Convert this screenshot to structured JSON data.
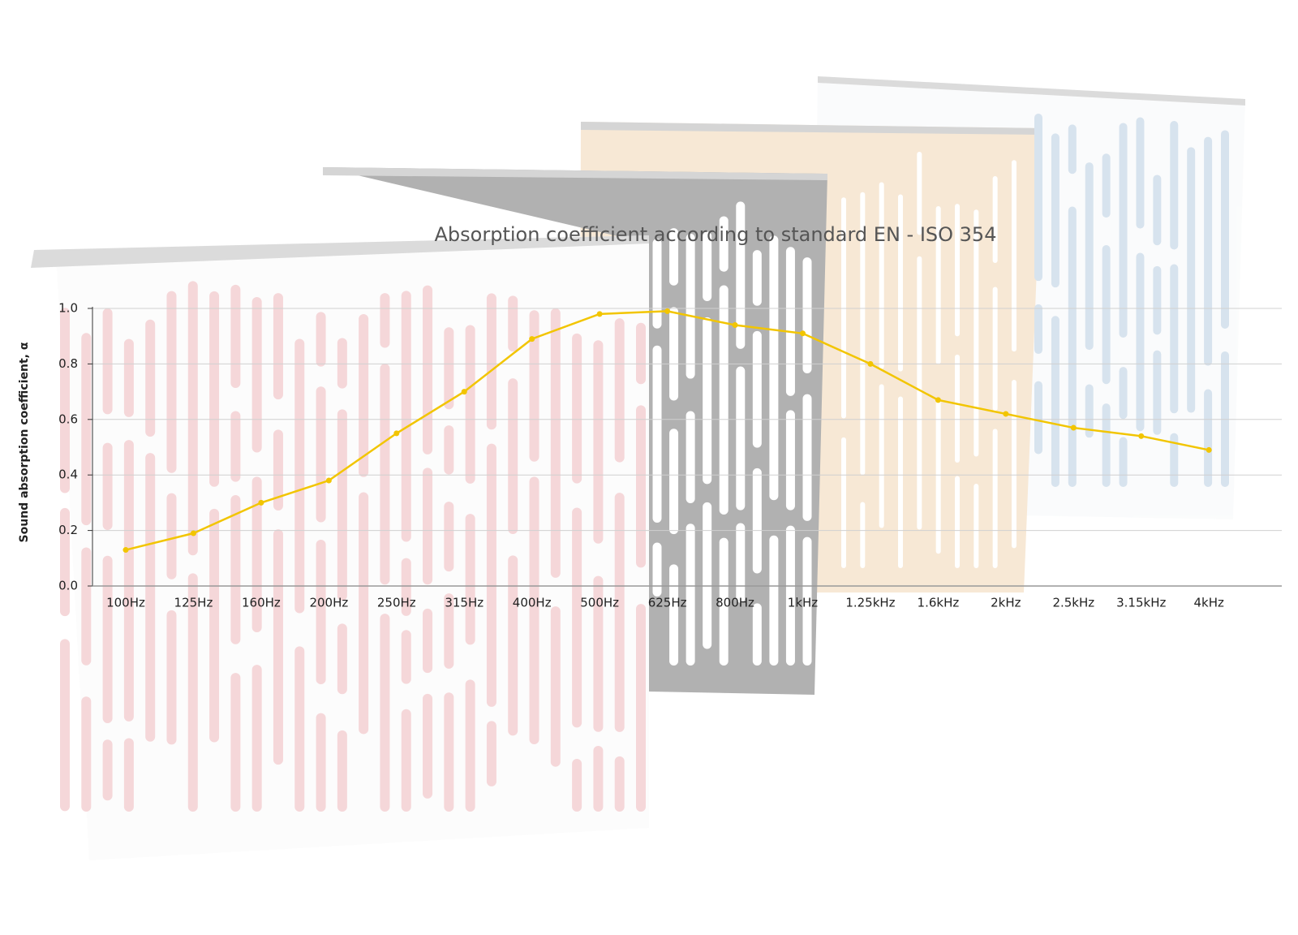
{
  "chart_data": {
    "type": "line",
    "title": "Absorption coefficient according to standard EN - ISO 354",
    "y_label": "Sound absorption coefficient, α",
    "categories": [
      "100Hz",
      "125Hz",
      "160Hz",
      "200Hz",
      "250Hz",
      "315Hz",
      "400Hz",
      "500Hz",
      "625Hz",
      "800Hz",
      "1kHz",
      "1.25kHz",
      "1.6kHz",
      "2kHz",
      "2.5kHz",
      "3.15kHz",
      "4kHz"
    ],
    "values": [
      0.13,
      0.19,
      0.3,
      0.38,
      0.55,
      0.7,
      0.89,
      0.98,
      0.99,
      0.94,
      0.91,
      0.8,
      0.67,
      0.62,
      0.57,
      0.54,
      0.49
    ],
    "color": "#f2c500",
    "ylim": [
      0,
      1
    ],
    "yticks": [
      {
        "value": 0,
        "label": "0.0"
      },
      0.2,
      0.4,
      0.6,
      0.8,
      {
        "value": 1,
        "label": "1.0"
      }
    ],
    "grid": true
  }
}
